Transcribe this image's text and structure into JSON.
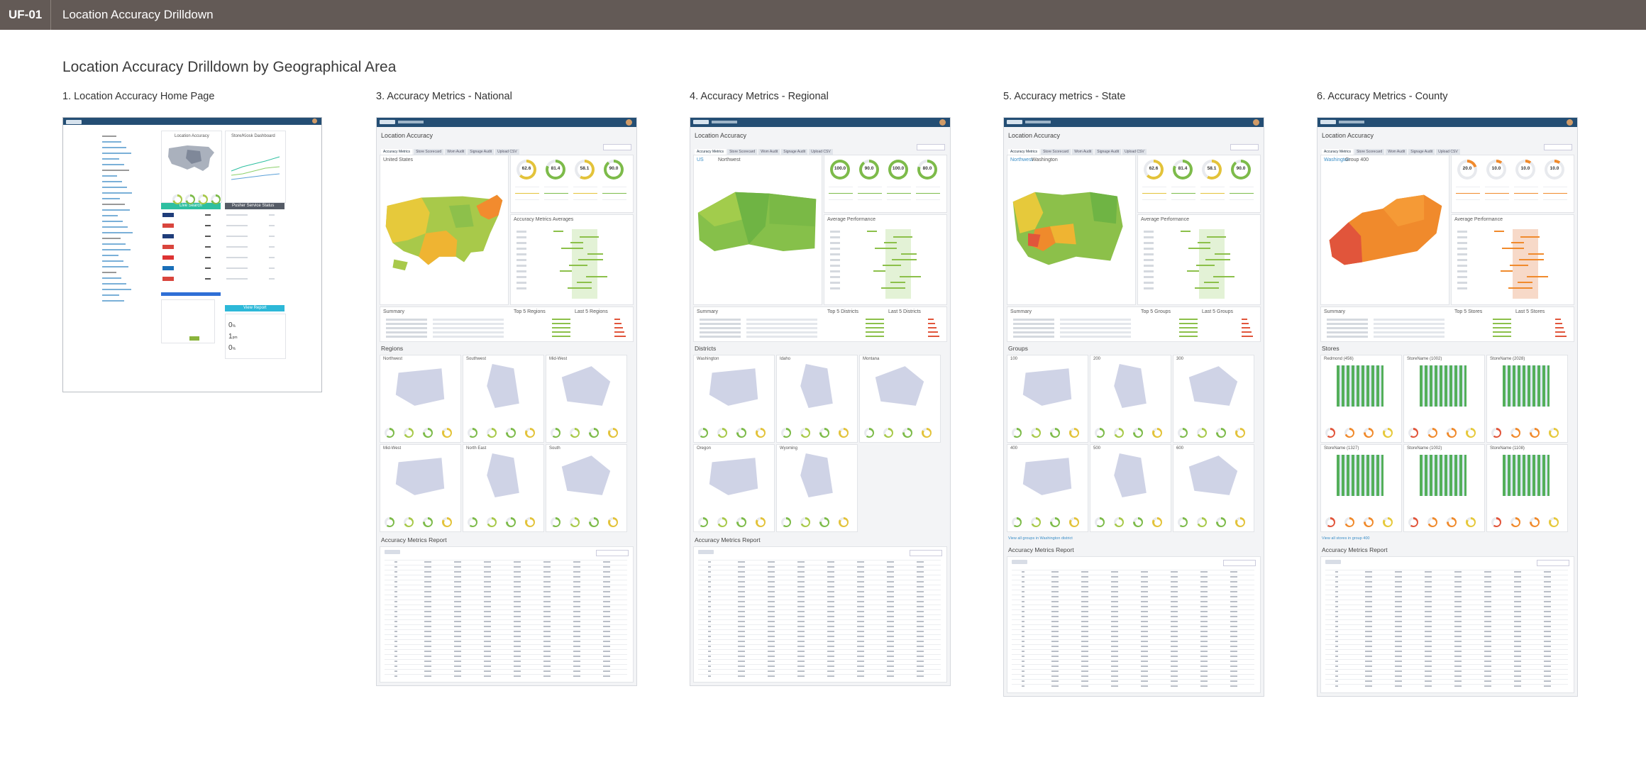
{
  "topbar": {
    "id": "UF-01",
    "title": "Location Accuracy Drilldown"
  },
  "page_heading": "Location Accuracy Drilldown by Geographical Area",
  "home": {
    "title": "1. Location Accuracy Home Page",
    "panel_location": "Location Accuracy",
    "panel_store": "Store/Kiosk Dashboard",
    "live_search": "Live Search",
    "pusher_status": "Pusher Service Status",
    "view_report": "View Report"
  },
  "screens": [
    {
      "key": "national",
      "title": "3. Accuracy Metrics - National",
      "app_title": "Location Accuracy",
      "tabs": [
        "Accuracy Metrics",
        "Store Scorecard",
        "Wom Audit",
        "Signage Audit",
        "Upload CSV"
      ],
      "crumb": "United States",
      "gauges": [
        "62.6",
        "81.4",
        "58.1",
        "90.0"
      ],
      "gauge_colors": [
        "#e3c33a",
        "#7dbb4a",
        "#e3c33a",
        "#7dbb4a"
      ],
      "perf_title": "Accuracy Metrics Averages",
      "summary_title": "Summary",
      "top_title": "Top 5 Regions",
      "last_title": "Last 5 Regions",
      "area_title": "Regions",
      "areas": [
        "Northwest",
        "Southwest",
        "Mid-West",
        "Mid-West",
        "North East",
        "South"
      ],
      "report_title": "Accuracy Metrics Report",
      "map_type": "us"
    },
    {
      "key": "regional",
      "title": "4. Accuracy Metrics - Regional",
      "app_title": "Location Accuracy",
      "tabs": [
        "Accuracy Metrics",
        "Store Scorecard",
        "Wom Audit",
        "Signage Audit",
        "Upload CSV"
      ],
      "crumb": "Northwest",
      "crumb_link": "US",
      "gauges": [
        "100.0",
        "90.0",
        "100.0",
        "80.0"
      ],
      "gauge_colors": [
        "#7dbb4a",
        "#7dbb4a",
        "#7dbb4a",
        "#7dbb4a"
      ],
      "perf_title": "Average Performance",
      "summary_title": "Summary",
      "top_title": "Top 5 Districts",
      "last_title": "Last 5 Districts",
      "area_title": "Districts",
      "areas": [
        "Washington",
        "Idaho",
        "Montana",
        "Oregon",
        "Wyoming"
      ],
      "report_title": "Accuracy Metrics Report",
      "map_type": "nw"
    },
    {
      "key": "state",
      "title": "5. Accuracy metrics - State",
      "app_title": "Location Accuracy",
      "tabs": [
        "Accuracy Metrics",
        "Store Scorecard",
        "Wom Audit",
        "Signage Audit",
        "Upload CSV"
      ],
      "crumb": "Washington",
      "crumb_link": "Northwest",
      "gauges": [
        "62.6",
        "81.4",
        "58.1",
        "90.0"
      ],
      "gauge_colors": [
        "#e3c33a",
        "#7dbb4a",
        "#e3c33a",
        "#7dbb4a"
      ],
      "perf_title": "Average Performance",
      "summary_title": "Summary",
      "top_title": "Top 5 Groups",
      "last_title": "Last 5 Groups",
      "area_title": "Groups",
      "areas": [
        "100",
        "200",
        "300",
        "400",
        "500",
        "600"
      ],
      "view_all": "View all groups in Washington district",
      "report_title": "Accuracy Metrics Report",
      "map_type": "wa"
    },
    {
      "key": "county",
      "title": "6. Accuracy Metrics - County",
      "app_title": "Location Accuracy",
      "tabs": [
        "Accuracy Metrics",
        "Store Scorecard",
        "Wom Audit",
        "Signage Audit",
        "Upload CSV"
      ],
      "crumb": "Group 400",
      "crumb_link": "Washington",
      "gauges": [
        "20.0",
        "10.0",
        "10.0",
        "10.0"
      ],
      "gauge_colors": [
        "#f08a2c",
        "#f08a2c",
        "#f08a2c",
        "#f08a2c"
      ],
      "perf_title": "Average Performance",
      "summary_title": "Summary",
      "top_title": "Top 5 Stores",
      "last_title": "Last 5 Stores",
      "area_title": "Stores",
      "areas": [
        "Redmond (456)",
        "StoreName (1002)",
        "StoreName (2028)",
        "StoreName (1327)",
        "StoreName (1002)",
        "StoreName (1108)"
      ],
      "view_all": "View all stores in group 400",
      "report_title": "Accuracy Metrics Report",
      "map_type": "co"
    }
  ],
  "colors": {
    "topbar": "#635a56",
    "appbar": "#244e74",
    "green": "#7dbb4a",
    "yellow": "#e3c33a",
    "orange": "#f08a2c",
    "red": "#e1553b"
  }
}
